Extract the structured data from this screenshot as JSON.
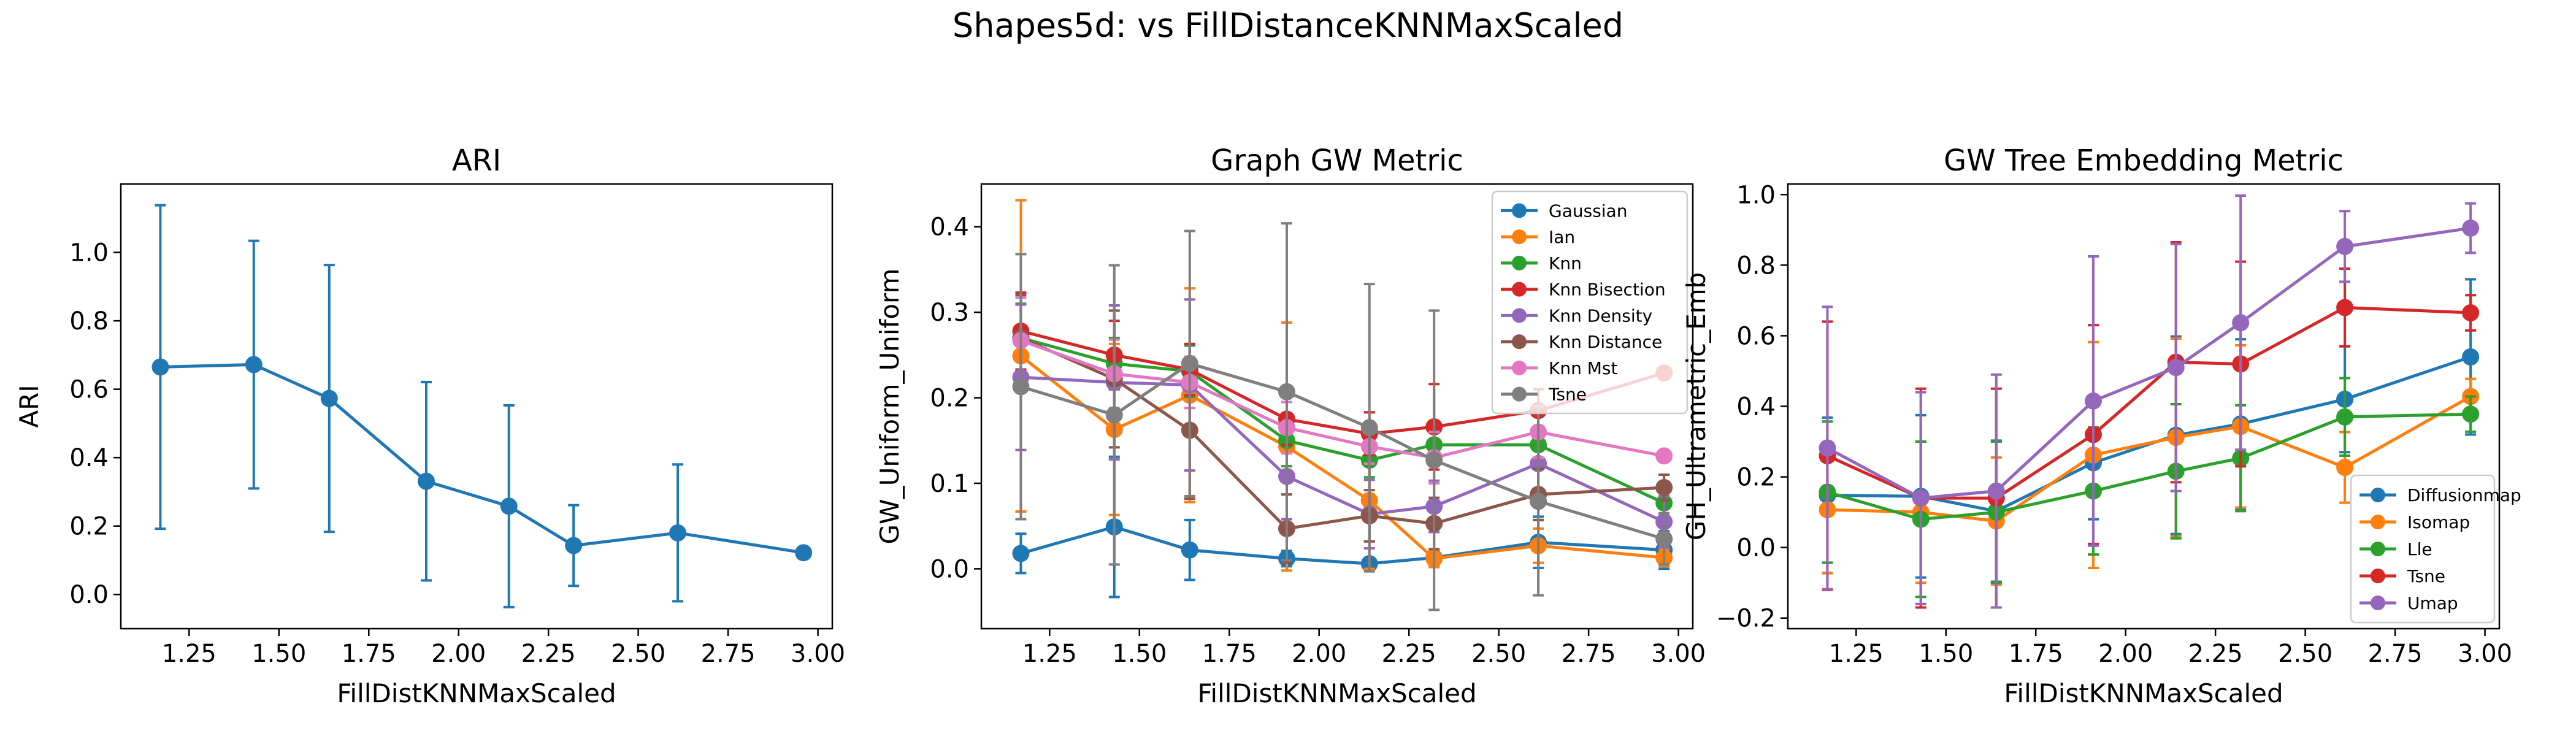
{
  "suptitle": "Shapes5d: vs FillDistanceKNNMaxScaled",
  "chart_data": [
    {
      "type": "line",
      "title": "ARI",
      "xlabel": "FillDistKNNMaxScaled",
      "ylabel": "ARI",
      "xlim": [
        1.06,
        3.04
      ],
      "ylim": [
        -0.1,
        1.2
      ],
      "xticks": [
        "1.25",
        "1.50",
        "1.75",
        "2.00",
        "2.25",
        "2.50",
        "2.75",
        "3.00"
      ],
      "yticks": [
        "0.0",
        "0.2",
        "0.4",
        "0.6",
        "0.8",
        "1.0"
      ],
      "x": [
        1.17,
        1.43,
        1.64,
        1.91,
        2.14,
        2.32,
        2.61,
        2.96
      ],
      "legend": "none",
      "grid": false,
      "series": [
        {
          "color": "#1f77b4",
          "values": [
            0.665,
            0.672,
            0.573,
            0.331,
            0.258,
            0.143,
            0.18,
            0.122
          ],
          "err": [
            0.473,
            0.362,
            0.39,
            0.29,
            0.295,
            0.118,
            0.2,
            0
          ]
        }
      ]
    },
    {
      "type": "line",
      "title": "Graph GW Metric",
      "xlabel": "FillDistKNNMaxScaled",
      "ylabel": "GW_Uniform_Uniform",
      "xlim": [
        1.06,
        3.04
      ],
      "ylim": [
        -0.07,
        0.45
      ],
      "xticks": [
        "1.25",
        "1.50",
        "1.75",
        "2.00",
        "2.25",
        "2.50",
        "2.75",
        "3.00"
      ],
      "yticks": [
        "0.0",
        "0.1",
        "0.2",
        "0.3",
        "0.4"
      ],
      "x": [
        1.17,
        1.43,
        1.64,
        1.91,
        2.14,
        2.32,
        2.61,
        2.96
      ],
      "legend": "upper right",
      "grid": false,
      "series": [
        {
          "name": "Gaussian",
          "color": "#1f77b4",
          "values": [
            0.018,
            0.049,
            0.022,
            0.012,
            0.006,
            0.013,
            0.031,
            0.022
          ],
          "err": [
            0.023,
            0.082,
            0.035,
            0.009,
            0.005,
            0.009,
            0.03,
            0.022
          ]
        },
        {
          "name": "Ian",
          "color": "#ff7f0e",
          "values": [
            0.249,
            0.163,
            0.203,
            0.143,
            0.08,
            0.012,
            0.027,
            0.013
          ],
          "err": [
            0.182,
            0.1,
            0.125,
            0.145,
            0.08,
            0.01,
            0.02,
            0.01
          ]
        },
        {
          "name": "Knn",
          "color": "#2ca02c",
          "values": [
            0.27,
            0.24,
            0.231,
            0.15,
            0.127,
            0.145,
            0.145,
            0.077
          ],
          "err": [
            0.04,
            0.03,
            0.03,
            0.03,
            0.02,
            0.02,
            0.02,
            0.015
          ]
        },
        {
          "name": "Knn Bisection",
          "color": "#d62728",
          "values": [
            0.278,
            0.25,
            0.233,
            0.175,
            0.158,
            0.166,
            0.185,
            0.229
          ],
          "err": [
            0.045,
            0.04,
            0.03,
            0.03,
            0.025,
            0.05,
            0.025,
            0.005
          ]
        },
        {
          "name": "Knn Density",
          "color": "#9467bd",
          "values": [
            0.224,
            0.218,
            0.215,
            0.108,
            0.064,
            0.073,
            0.123,
            0.055
          ],
          "err": [
            0.085,
            0.09,
            0.1,
            0.05,
            0.04,
            0.03,
            0.04,
            0.03
          ]
        },
        {
          "name": "Knn Distance",
          "color": "#8c564b",
          "values": [
            0.27,
            0.222,
            0.162,
            0.047,
            0.062,
            0.053,
            0.087,
            0.095
          ],
          "err": [
            0.05,
            0.08,
            0.08,
            0.04,
            0.03,
            0.03,
            0.03,
            0.015
          ]
        },
        {
          "name": "Knn Mst",
          "color": "#e377c2",
          "values": [
            0.267,
            0.228,
            0.218,
            0.165,
            0.143,
            0.13,
            0.16,
            0.132
          ],
          "err": [
            0.05,
            0.04,
            0.03,
            0.03,
            0.02,
            0.03,
            0.03,
            0.005
          ]
        },
        {
          "name": "Tsne",
          "color": "#7f7f7f",
          "values": [
            0.213,
            0.18,
            0.24,
            0.207,
            0.165,
            0.127,
            0.079,
            0.035
          ],
          "err": [
            0.155,
            0.175,
            0.155,
            0.197,
            0.168,
            0.175,
            0.11,
            0.03
          ]
        }
      ]
    },
    {
      "type": "line",
      "title": "GW Tree Embedding Metric",
      "xlabel": "FillDistKNNMaxScaled",
      "ylabel": "GH_Ultrametric_Emb",
      "xlim": [
        1.06,
        3.04
      ],
      "ylim": [
        -0.23,
        1.03
      ],
      "xticks": [
        "1.25",
        "1.50",
        "1.75",
        "2.00",
        "2.25",
        "2.50",
        "2.75",
        "3.00"
      ],
      "yticks": [
        "−0.2",
        "0.0",
        "0.2",
        "0.4",
        "0.6",
        "0.8",
        "1.0"
      ],
      "x": [
        1.17,
        1.43,
        1.64,
        1.91,
        2.14,
        2.32,
        2.61,
        2.96
      ],
      "legend": "lower right",
      "grid": false,
      "series": [
        {
          "name": "Diffusionmap",
          "color": "#1f77b4",
          "values": [
            0.148,
            0.145,
            0.103,
            0.24,
            0.318,
            0.35,
            0.42,
            0.54
          ],
          "err": [
            0.22,
            0.23,
            0.2,
            0.16,
            0.28,
            0.24,
            0.15,
            0.22
          ]
        },
        {
          "name": "Isomap",
          "color": "#ff7f0e",
          "values": [
            0.107,
            0.1,
            0.075,
            0.262,
            0.312,
            0.343,
            0.227,
            0.428
          ],
          "err": [
            0.18,
            0.2,
            0.18,
            0.32,
            0.28,
            0.23,
            0.1,
            0.05
          ]
        },
        {
          "name": "Lle",
          "color": "#2ca02c",
          "values": [
            0.157,
            0.08,
            0.1,
            0.16,
            0.216,
            0.253,
            0.37,
            0.378
          ],
          "err": [
            0.2,
            0.22,
            0.2,
            0.18,
            0.19,
            0.15,
            0.11,
            0.05
          ]
        },
        {
          "name": "Tsne",
          "color": "#d62728",
          "values": [
            0.26,
            0.14,
            0.14,
            0.32,
            0.525,
            0.52,
            0.68,
            0.665
          ],
          "err": [
            0.38,
            0.31,
            0.31,
            0.31,
            0.34,
            0.29,
            0.11,
            0.05
          ]
        },
        {
          "name": "Umap",
          "color": "#9467bd",
          "values": [
            0.282,
            0.14,
            0.16,
            0.415,
            0.51,
            0.637,
            0.853,
            0.905
          ],
          "err": [
            0.4,
            0.3,
            0.33,
            0.41,
            0.35,
            0.36,
            0.1,
            0.07
          ]
        }
      ]
    }
  ]
}
